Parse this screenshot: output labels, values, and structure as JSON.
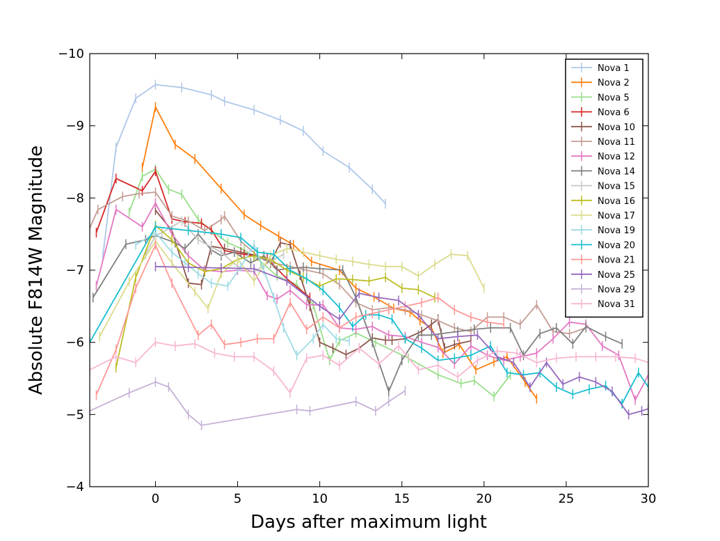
{
  "chart_data": {
    "type": "line",
    "title": "",
    "xlabel": "Days after maximum light",
    "ylabel": "Absolute F814W Magnitude",
    "xlim": [
      -4,
      30
    ],
    "ylim": [
      -4,
      -10
    ],
    "y_inverted": true,
    "x_ticks": [
      0,
      5,
      10,
      15,
      20,
      25,
      30
    ],
    "x_tick_labels": [
      "0",
      "5",
      "10",
      "15",
      "20",
      "25",
      "30"
    ],
    "y_ticks": [
      -10,
      -9,
      -8,
      -7,
      -6,
      -5,
      -4
    ],
    "y_tick_labels": [
      "−10",
      "−9",
      "−8",
      "−7",
      "−6",
      "−5",
      "−4"
    ],
    "legend_position": "top-right",
    "grid": false,
    "series": [
      {
        "name": "Nova 1",
        "color": "#aec7e8",
        "x": [
          -3.2,
          -2.4,
          -1.2,
          0,
          1.6,
          3.4,
          4.2,
          6,
          7.6,
          9,
          10.2,
          11.8,
          13.2,
          14
        ],
        "y": [
          -7.2,
          -8.7,
          -9.38,
          -9.57,
          -9.53,
          -9.43,
          -9.34,
          -9.22,
          -9.08,
          -8.93,
          -8.65,
          -8.42,
          -8.12,
          -7.92
        ]
      },
      {
        "name": "Nova 2",
        "color": "#ff7f0e",
        "x": [
          -0.8,
          0,
          1.2,
          2.4,
          4,
          5.4,
          6.4,
          7.5,
          8.4,
          9.5,
          11.2,
          12.2,
          13.3,
          14.5,
          15.5,
          16.1,
          16.8,
          17.5,
          18.5,
          19.5,
          20.6,
          21.4,
          22.5,
          23.2
        ],
        "y": [
          -8.42,
          -9.26,
          -8.74,
          -8.54,
          -8.13,
          -7.77,
          -7.62,
          -7.47,
          -7.35,
          -7.12,
          -7.0,
          -6.75,
          -6.63,
          -6.47,
          -6.42,
          -6.3,
          -6.2,
          -5.85,
          -5.97,
          -5.62,
          -5.73,
          -5.8,
          -5.45,
          -5.22
        ]
      },
      {
        "name": "Nova 5",
        "color": "#98df8a",
        "x": [
          -1.6,
          -0.8,
          0,
          0.8,
          1.6,
          2.6,
          3.4,
          4.4,
          5.4,
          6.4,
          7.4,
          8.6,
          9.6,
          10.6,
          11.2,
          12.2,
          13.4,
          15.4,
          17.2,
          18.6,
          19.4,
          20.6,
          21.6
        ],
        "y": [
          -7.8,
          -8.3,
          -8.4,
          -8.12,
          -8.05,
          -7.7,
          -7.55,
          -7.38,
          -7.28,
          -7.12,
          -6.92,
          -6.8,
          -6.52,
          -5.75,
          -6.02,
          -6.13,
          -6.0,
          -5.78,
          -5.55,
          -5.43,
          -5.47,
          -5.25,
          -5.55
        ]
      },
      {
        "name": "Nova 6",
        "color": "#d62728",
        "x": [
          -3.6,
          -2.4,
          -0.8,
          0,
          1,
          1.8,
          2.8,
          3.4,
          4.2,
          5.4,
          6,
          6.8,
          8,
          9.4
        ],
        "y": [
          -7.52,
          -8.27,
          -8.1,
          -8.37,
          -7.71,
          -7.67,
          -7.65,
          -7.56,
          -7.27,
          -7.22,
          -7.2,
          -7.16,
          -6.88,
          -6.62
        ]
      },
      {
        "name": "Nova 10",
        "color": "#8c564b",
        "x": [
          0,
          1,
          2,
          2.8,
          3.4,
          4.2,
          5.2,
          6.2,
          7,
          7.6,
          8.2,
          8.8,
          9.4,
          10,
          10.8,
          11.6,
          12.4,
          13.2,
          14,
          14.4,
          15.2,
          16.2,
          16.8,
          17.2,
          17.6,
          18.2,
          19.2
        ],
        "y": [
          -7.83,
          -7.55,
          -6.82,
          -6.8,
          -7.33,
          -7.3,
          -7.25,
          -7.2,
          -7.1,
          -7.38,
          -7.35,
          -6.93,
          -6.5,
          -6.0,
          -5.92,
          -5.83,
          -5.92,
          -6.06,
          -6.03,
          -6.03,
          -6.05,
          -6.15,
          -6.25,
          -6.32,
          -5.92,
          -5.97,
          -6.02
        ]
      },
      {
        "name": "Nova 11",
        "color": "#c49c94",
        "x": [
          -4,
          -3.5,
          -2,
          -1,
          0,
          1,
          2,
          3,
          4,
          4.2,
          5.2,
          6.2,
          7.2,
          8.2,
          9.2,
          10.2,
          11.2,
          12.2,
          13.2,
          14.2,
          15.2,
          16.2,
          17.2,
          18.2,
          19.2,
          20.2,
          21.2,
          22.2,
          23.2,
          24.2,
          25.2,
          26.2
        ],
        "y": [
          -7.58,
          -7.84,
          -8.02,
          -8.06,
          -8.08,
          -7.75,
          -7.68,
          -7.55,
          -7.7,
          -7.75,
          -7.4,
          -7.2,
          -7.1,
          -7.05,
          -7.0,
          -6.95,
          -6.8,
          -6.55,
          -6.45,
          -6.48,
          -6.45,
          -6.38,
          -6.3,
          -6.2,
          -6.15,
          -6.35,
          -6.35,
          -6.25,
          -6.52,
          -6.15,
          -6.12,
          -6.2
        ]
      },
      {
        "name": "Nova 12",
        "color": "#e377c2",
        "x": [
          -3.6,
          -2.4,
          -0.8,
          0,
          1,
          2,
          3,
          4,
          5,
          6,
          6.8,
          7.4,
          8.2,
          9.2,
          10.2,
          11.2,
          12.2,
          13.2,
          14.2,
          15.2,
          16.2,
          17.2,
          18.2,
          19.2,
          20.2,
          21.2,
          22.2,
          23.2,
          24.2,
          25.2,
          26.2,
          27.2,
          28.2,
          29.2,
          30
        ],
        "y": [
          -6.78,
          -7.84,
          -7.6,
          -7.93,
          -7.5,
          -7.2,
          -7.0,
          -6.98,
          -7.0,
          -6.98,
          -6.65,
          -6.6,
          -6.72,
          -6.52,
          -6.52,
          -6.2,
          -6.18,
          -6.22,
          -6.1,
          -6.08,
          -6.0,
          -5.93,
          -5.7,
          -5.95,
          -5.82,
          -5.75,
          -5.8,
          -5.85,
          -6.05,
          -6.28,
          -6.25,
          -5.95,
          -5.82,
          -5.2,
          -5.55
        ]
      },
      {
        "name": "Nova 14",
        "color": "#7f7f7f",
        "x": [
          -3.8,
          -1.8,
          -0.6,
          0,
          1.2,
          1.8,
          2.6,
          3.4,
          4,
          4.8,
          5.8,
          6.6,
          7.4,
          8,
          9,
          10,
          11.4,
          12.2,
          13.2,
          14.2,
          15,
          16,
          16.8,
          17.4,
          18.4,
          19.4,
          20.4,
          21.6,
          22.4,
          23.4,
          24.4,
          25.4,
          26.2,
          27.4,
          28.4
        ],
        "y": [
          -6.62,
          -7.36,
          -7.42,
          -7.48,
          -7.38,
          -7.3,
          -7.5,
          -7.28,
          -7.2,
          -7.25,
          -7.1,
          -7.2,
          -7.0,
          -7.02,
          -7.04,
          -7.02,
          -7.0,
          -6.62,
          -6.0,
          -5.32,
          -5.75,
          -6.1,
          -6.1,
          -6.12,
          -6.15,
          -6.18,
          -6.2,
          -6.2,
          -5.82,
          -6.12,
          -6.2,
          -5.98,
          -6.22,
          -6.08,
          -5.98
        ]
      },
      {
        "name": "Nova 15",
        "color": "#c7c7c7",
        "x": [
          -0.6,
          0,
          0.4,
          1.6,
          2.6,
          3.4,
          4,
          5,
          6,
          7,
          7.8
        ],
        "y": [
          -7.22,
          -7.48,
          -7.52,
          -7.68,
          -7.42,
          -7.32,
          -7.25,
          -7.05,
          -6.98,
          -7.12,
          -7.22
        ]
      },
      {
        "name": "Nova 16",
        "color": "#bcbd22",
        "x": [
          -2.4,
          -1.2,
          0,
          1,
          2,
          3,
          4,
          5,
          6,
          7,
          8,
          9,
          10,
          11,
          12,
          13,
          14,
          15,
          16,
          17
        ],
        "y": [
          -5.65,
          -6.9,
          -7.62,
          -7.42,
          -7.1,
          -6.98,
          -7.02,
          -7.15,
          -7.2,
          -7.15,
          -7.0,
          -6.9,
          -6.78,
          -6.88,
          -6.87,
          -6.85,
          -6.9,
          -6.75,
          -6.73,
          -6.62
        ]
      },
      {
        "name": "Nova 17",
        "color": "#dbdb8d",
        "x": [
          -3.4,
          -1.6,
          0,
          1,
          2.4,
          3.2,
          4,
          5,
          6,
          7,
          8,
          9,
          10,
          11,
          12,
          13,
          14,
          15,
          16,
          17,
          18,
          19,
          20
        ],
        "y": [
          -6.08,
          -6.84,
          -7.4,
          -7.1,
          -6.7,
          -6.47,
          -6.95,
          -7.15,
          -6.85,
          -7.2,
          -7.3,
          -7.25,
          -7.2,
          -7.15,
          -7.12,
          -7.08,
          -7.05,
          -7.05,
          -6.92,
          -7.08,
          -7.22,
          -7.2,
          -6.75
        ]
      },
      {
        "name": "Nova 19",
        "color": "#9edae5",
        "x": [
          -1.2,
          0,
          1,
          1.8,
          2.6,
          3.4,
          4.4,
          5.2,
          6,
          6.6,
          7.2,
          7.8,
          8.6,
          9.6,
          10.2,
          11,
          11.8
        ],
        "y": [
          -7.35,
          -7.52,
          -7.25,
          -7.1,
          -6.95,
          -6.82,
          -6.78,
          -7.05,
          -7.35,
          -7.0,
          -6.62,
          -6.2,
          -5.82,
          -6.05,
          -6.25,
          -6.05,
          -6.02
        ]
      },
      {
        "name": "Nova 20",
        "color": "#17becf",
        "x": [
          -4,
          0,
          2,
          4,
          5.2,
          6.2,
          7.2,
          8.2,
          9.2,
          10.2,
          11.2,
          12,
          12.8,
          13.6,
          14.4,
          15.2,
          16.2,
          17.2,
          18.2,
          19.2,
          20.4,
          21.4,
          22.4,
          23.4,
          24.4,
          25.4,
          26.4,
          27.4,
          28.4,
          29.4,
          30
        ],
        "y": [
          -6.0,
          -7.6,
          -7.55,
          -7.5,
          -7.45,
          -7.25,
          -7.22,
          -7.0,
          -6.88,
          -6.72,
          -6.48,
          -6.22,
          -6.38,
          -6.38,
          -6.32,
          -6.05,
          -5.92,
          -5.75,
          -5.78,
          -5.82,
          -5.95,
          -5.58,
          -5.55,
          -5.58,
          -5.38,
          -5.28,
          -5.35,
          -5.4,
          -5.15,
          -5.58,
          -5.38
        ]
      },
      {
        "name": "Nova 21",
        "color": "#ff9896",
        "x": [
          -3.6,
          -2.4,
          -1.2,
          0,
          1,
          2.6,
          3.4,
          4.2,
          5.2,
          6.2,
          7.2,
          8.2,
          9.2,
          10.2,
          11.2,
          12.2,
          13.2,
          14.2,
          15.2,
          16.2,
          17.2,
          18.2,
          19.2,
          20.2,
          21.2
        ],
        "y": [
          -5.27,
          -5.9,
          -6.75,
          -7.35,
          -6.82,
          -6.1,
          -6.25,
          -5.97,
          -6.0,
          -6.05,
          -6.05,
          -6.55,
          -6.18,
          -6.35,
          -6.2,
          -6.35,
          -6.4,
          -6.45,
          -6.5,
          -6.55,
          -6.62,
          -6.45,
          -6.35,
          -6.28,
          -6.25
        ]
      },
      {
        "name": "Nova 25",
        "color": "#9467bd",
        "x": [
          0,
          2,
          4,
          6,
          8,
          10,
          11.2,
          12.4,
          13.6,
          14.8,
          16,
          17.2,
          18.4,
          19.6,
          20.8,
          21.8,
          22.8,
          23.8,
          24.8,
          25.8,
          26.8,
          27.8,
          28.8,
          29.6,
          30
        ],
        "y": [
          -7.05,
          -7.04,
          -7.03,
          -7.02,
          -6.85,
          -6.5,
          -6.32,
          -6.68,
          -6.62,
          -6.58,
          -6.38,
          -6.05,
          -6.08,
          -6.1,
          -5.8,
          -5.72,
          -5.38,
          -5.72,
          -5.42,
          -5.52,
          -5.45,
          -5.32,
          -5.0,
          -5.05,
          -5.08
        ]
      },
      {
        "name": "Nova 29",
        "color": "#c5b0d5",
        "x": [
          -4,
          -1.6,
          0,
          0.8,
          2,
          2.8,
          8.6,
          9.4,
          12.2,
          13.4,
          14.2,
          15.2
        ],
        "y": [
          -5.05,
          -5.3,
          -5.45,
          -5.38,
          -5.0,
          -4.85,
          -5.07,
          -5.05,
          -5.18,
          -5.05,
          -5.18,
          -5.33
        ]
      },
      {
        "name": "Nova 31",
        "color": "#f7b6d2",
        "x": [
          -4,
          -2.4,
          -1.2,
          0,
          1.2,
          2.4,
          3.6,
          4.8,
          6,
          7.2,
          8.2,
          9.2,
          10.2,
          11.2,
          12.4,
          13.6,
          14.8,
          16,
          17.2,
          18.4,
          19.6,
          20.8,
          22,
          23.2,
          24.4,
          25.6,
          26.8,
          28,
          29.2,
          30
        ],
        "y": [
          -5.62,
          -5.8,
          -5.72,
          -6.0,
          -5.95,
          -5.98,
          -5.85,
          -5.8,
          -5.8,
          -5.6,
          -5.3,
          -5.78,
          -5.82,
          -5.68,
          -5.92,
          -5.7,
          -5.95,
          -5.62,
          -5.68,
          -5.52,
          -5.75,
          -5.88,
          -5.85,
          -5.72,
          -5.78,
          -5.8,
          -5.8,
          -5.8,
          -5.78,
          -5.72
        ]
      }
    ]
  }
}
